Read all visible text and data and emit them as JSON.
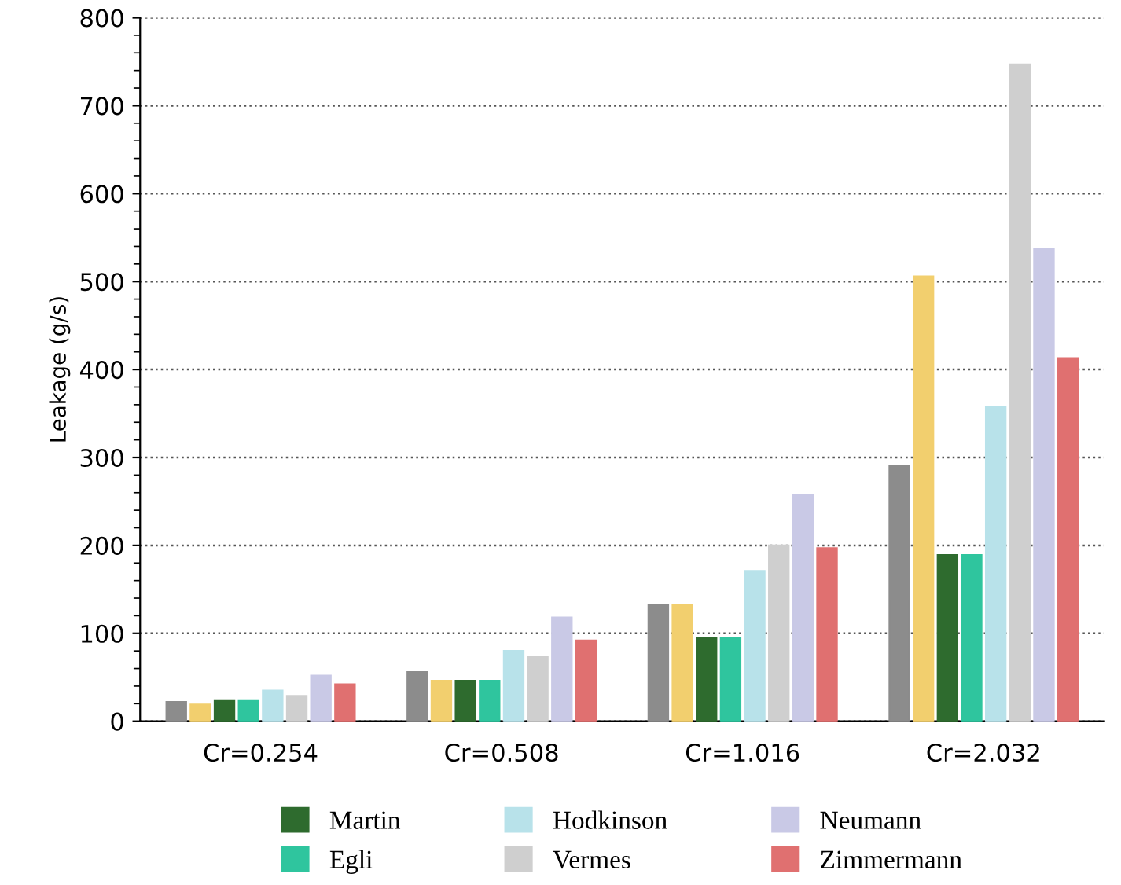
{
  "chart_data": {
    "type": "bar",
    "ylabel": "Leakage (g/s)",
    "categories": [
      "Cr=0.254",
      "Cr=0.508",
      "Cr=1.016",
      "Cr=2.032"
    ],
    "series": [
      {
        "color": "#8c8c8c",
        "values": [
          22,
          56,
          132,
          290
        ]
      },
      {
        "color": "#f2cf6e",
        "values": [
          19,
          46,
          132,
          506
        ]
      },
      {
        "name": "Martin",
        "color": "#2e6b2e",
        "values": [
          24,
          46,
          95,
          189
        ]
      },
      {
        "name": "Egli",
        "color": "#2fc59e",
        "values": [
          24,
          46,
          95,
          189
        ]
      },
      {
        "name": "Hodkinson",
        "color": "#b8e2ea",
        "values": [
          35,
          80,
          171,
          358
        ]
      },
      {
        "name": "Vermes",
        "color": "#cfcfcf",
        "values": [
          29,
          73,
          200,
          747
        ]
      },
      {
        "name": "Neumann",
        "color": "#c9c9e6",
        "values": [
          52,
          118,
          258,
          537
        ]
      },
      {
        "name": "Zimmermann",
        "color": "#e07070",
        "values": [
          42,
          92,
          197,
          413
        ]
      }
    ],
    "ylim": [
      0,
      800
    ],
    "yticks": [
      0,
      100,
      200,
      300,
      400,
      500,
      600,
      700,
      800
    ],
    "grid": "y",
    "legend": "bottom"
  }
}
